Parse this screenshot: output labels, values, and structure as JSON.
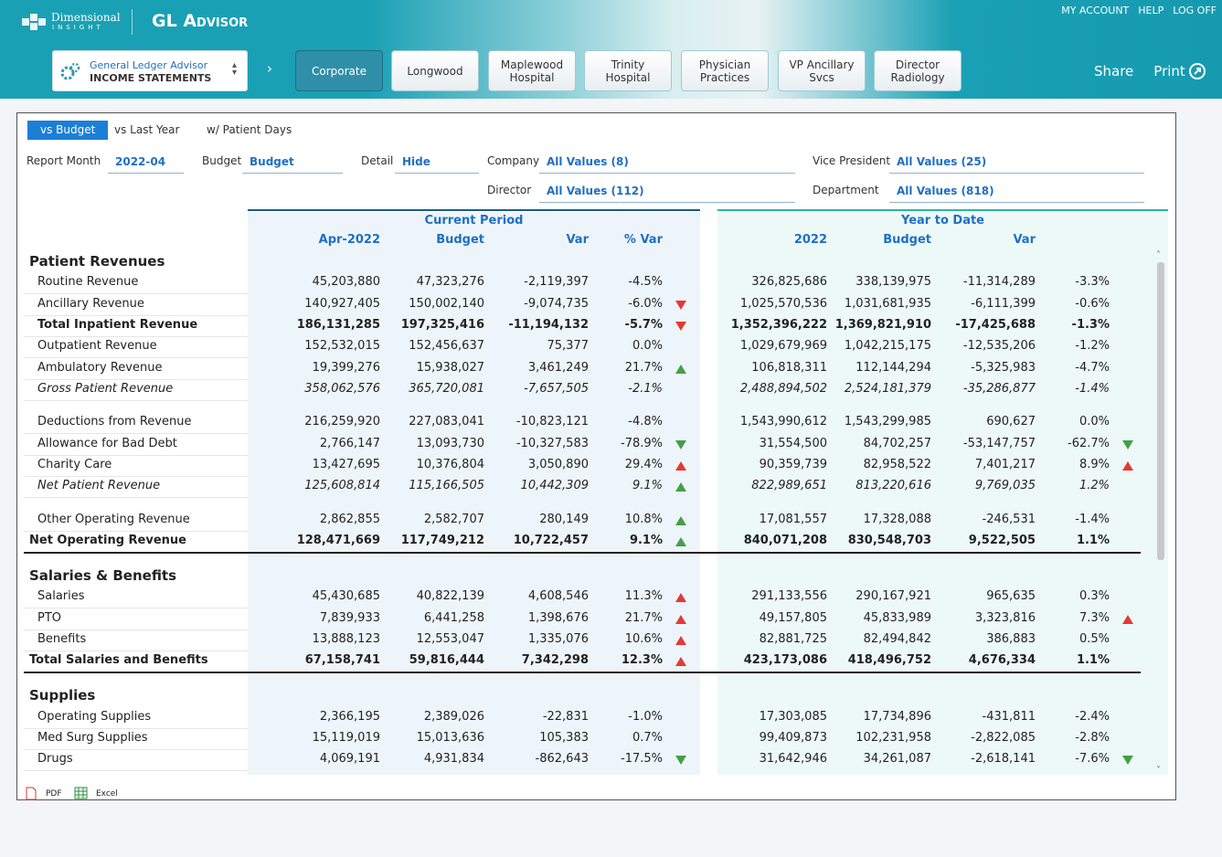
{
  "header": {
    "brand": "Dimensional",
    "brand_sub": "INSIGHT",
    "app_title": "GL Advisor",
    "links": [
      "MY ACCOUNT",
      "HELP",
      "LOG OFF"
    ],
    "selector": {
      "title": "General Ledger Advisor",
      "subtitle": "INCOME STATEMENTS"
    },
    "tabs": [
      "Corporate",
      "Longwood",
      "Maplewood Hospital",
      "Trinity Hospital",
      "Physician Practices",
      "VP Ancillary Svcs",
      "Director Radiology"
    ],
    "active_tab": 0,
    "actions": [
      "Share",
      "Print"
    ]
  },
  "view_tabs": [
    "vs Budget",
    "vs Last Year",
    "w/ Patient Days"
  ],
  "active_view": 0,
  "filters": [
    {
      "label": "Report Month",
      "value": "2022-04"
    },
    {
      "label": "Budget",
      "value": "Budget"
    },
    {
      "label": "Detail",
      "value": "Hide"
    },
    {
      "label": "Company",
      "value": "All Values (8)"
    },
    {
      "label": "Vice President",
      "value": "All Values (25)"
    },
    {
      "label": "Director",
      "value": "All Values (112)"
    },
    {
      "label": "Department",
      "value": "All Values (818)"
    }
  ],
  "table": {
    "groups": [
      "Current Period",
      "Year to Date"
    ],
    "columns": [
      "Apr-2022",
      "Budget",
      "Var",
      "% Var",
      "2022",
      "Budget",
      "Var"
    ],
    "rows": [
      {
        "label": "Patient Revenues",
        "style": "section"
      },
      {
        "label": "Routine Revenue",
        "style": "detail",
        "current": [
          "45,203,880",
          "47,323,276",
          "-2,119,397",
          "-4.5%"
        ],
        "ytd": [
          "326,825,686",
          "338,139,975",
          "-11,314,289",
          "-3.3%"
        ]
      },
      {
        "label": "Ancillary Revenue",
        "style": "detail",
        "current": [
          "140,927,405",
          "150,002,140",
          "-9,074,735",
          "-6.0%"
        ],
        "ytd": [
          "1,025,570,536",
          "1,031,681,935",
          "-6,111,399",
          "-0.6%"
        ],
        "cp_arrow": {
          "dir": "down",
          "color": "#e53935"
        }
      },
      {
        "label": "Total Inpatient Revenue",
        "style": "subtotal",
        "current": [
          "186,131,285",
          "197,325,416",
          "-11,194,132",
          "-5.7%"
        ],
        "ytd": [
          "1,352,396,222",
          "1,369,821,910",
          "-17,425,688",
          "-1.3%"
        ],
        "cp_arrow": {
          "dir": "down",
          "color": "#e53935"
        }
      },
      {
        "label": "Outpatient Revenue",
        "style": "detail",
        "current": [
          "152,532,015",
          "152,456,637",
          "75,377",
          "0.0%"
        ],
        "ytd": [
          "1,029,679,969",
          "1,042,215,175",
          "-12,535,206",
          "-1.2%"
        ]
      },
      {
        "label": "Ambulatory Revenue",
        "style": "detail",
        "current": [
          "19,399,276",
          "15,938,027",
          "3,461,249",
          "21.7%"
        ],
        "ytd": [
          "106,818,311",
          "112,144,294",
          "-5,325,983",
          "-4.7%"
        ],
        "cp_arrow": {
          "dir": "up",
          "color": "#43a047"
        }
      },
      {
        "label": "Gross Patient Revenue",
        "style": "italic",
        "current": [
          "358,062,576",
          "365,720,081",
          "-7,657,505",
          "-2.1%"
        ],
        "ytd": [
          "2,488,894,502",
          "2,524,181,379",
          "-35,286,877",
          "-1.4%"
        ]
      },
      {
        "label": "Deductions from Revenue",
        "style": "detail",
        "current": [
          "216,259,920",
          "227,083,041",
          "-10,823,121",
          "-4.8%"
        ],
        "ytd": [
          "1,543,990,612",
          "1,543,299,985",
          "690,627",
          "0.0%"
        ]
      },
      {
        "label": "Allowance for Bad Debt",
        "style": "detail",
        "current": [
          "2,766,147",
          "13,093,730",
          "-10,327,583",
          "-78.9%"
        ],
        "ytd": [
          "31,554,500",
          "84,702,257",
          "-53,147,757",
          "-62.7%"
        ],
        "cp_arrow": {
          "dir": "down",
          "color": "#43a047"
        },
        "ytd_arrow": {
          "dir": "down",
          "color": "#43a047"
        }
      },
      {
        "label": "Charity Care",
        "style": "detail",
        "current": [
          "13,427,695",
          "10,376,804",
          "3,050,890",
          "29.4%"
        ],
        "ytd": [
          "90,359,739",
          "82,958,522",
          "7,401,217",
          "8.9%"
        ],
        "cp_arrow": {
          "dir": "up",
          "color": "#e53935"
        },
        "ytd_arrow": {
          "dir": "up",
          "color": "#e53935"
        }
      },
      {
        "label": "Net Patient Revenue",
        "style": "italic",
        "current": [
          "125,608,814",
          "115,166,505",
          "10,442,309",
          "9.1%"
        ],
        "ytd": [
          "822,989,651",
          "813,220,616",
          "9,769,035",
          "1.2%"
        ],
        "cp_arrow": {
          "dir": "up",
          "color": "#43a047"
        }
      },
      {
        "label": "Other Operating Revenue",
        "style": "detail",
        "current": [
          "2,862,855",
          "2,582,707",
          "280,149",
          "10.8%"
        ],
        "ytd": [
          "17,081,557",
          "17,328,088",
          "-246,531",
          "-1.4%"
        ],
        "cp_arrow": {
          "dir": "up",
          "color": "#43a047"
        }
      },
      {
        "label": "Net Operating Revenue",
        "style": "total",
        "current": [
          "128,471,669",
          "117,749,212",
          "10,722,457",
          "9.1%"
        ],
        "ytd": [
          "840,071,208",
          "830,548,703",
          "9,522,505",
          "1.1%"
        ],
        "cp_arrow": {
          "dir": "up",
          "color": "#43a047"
        }
      },
      {
        "label": "Salaries & Benefits",
        "style": "section"
      },
      {
        "label": "Salaries",
        "style": "detail",
        "current": [
          "45,430,685",
          "40,822,139",
          "4,608,546",
          "11.3%"
        ],
        "ytd": [
          "291,133,556",
          "290,167,921",
          "965,635",
          "0.3%"
        ],
        "cp_arrow": {
          "dir": "up",
          "color": "#e53935"
        }
      },
      {
        "label": "PTO",
        "style": "detail",
        "current": [
          "7,839,933",
          "6,441,258",
          "1,398,676",
          "21.7%"
        ],
        "ytd": [
          "49,157,805",
          "45,833,989",
          "3,323,816",
          "7.3%"
        ],
        "cp_arrow": {
          "dir": "up",
          "color": "#e53935"
        },
        "ytd_arrow": {
          "dir": "up",
          "color": "#e53935"
        }
      },
      {
        "label": "Benefits",
        "style": "detail",
        "current": [
          "13,888,123",
          "12,553,047",
          "1,335,076",
          "10.6%"
        ],
        "ytd": [
          "82,881,725",
          "82,494,842",
          "386,883",
          "0.5%"
        ],
        "cp_arrow": {
          "dir": "up",
          "color": "#e53935"
        }
      },
      {
        "label": "Total Salaries and Benefits",
        "style": "total",
        "current": [
          "67,158,741",
          "59,816,444",
          "7,342,298",
          "12.3%"
        ],
        "ytd": [
          "423,173,086",
          "418,496,752",
          "4,676,334",
          "1.1%"
        ],
        "cp_arrow": {
          "dir": "up",
          "color": "#e53935"
        }
      },
      {
        "label": "Supplies",
        "style": "section"
      },
      {
        "label": "Operating Supplies",
        "style": "detail",
        "current": [
          "2,366,195",
          "2,389,026",
          "-22,831",
          "-1.0%"
        ],
        "ytd": [
          "17,303,085",
          "17,734,896",
          "-431,811",
          "-2.4%"
        ]
      },
      {
        "label": "Med Surg Supplies",
        "style": "detail",
        "current": [
          "15,119,019",
          "15,013,636",
          "105,383",
          "0.7%"
        ],
        "ytd": [
          "99,409,873",
          "102,231,958",
          "-2,822,085",
          "-2.8%"
        ]
      },
      {
        "label": "Drugs",
        "style": "detail",
        "current": [
          "4,069,191",
          "4,931,834",
          "-862,643",
          "-17.5%"
        ],
        "ytd": [
          "31,642,946",
          "34,261,087",
          "-2,618,141",
          "-7.6%"
        ],
        "cp_arrow": {
          "dir": "down",
          "color": "#43a047"
        },
        "ytd_arrow": {
          "dir": "down",
          "color": "#43a047"
        }
      }
    ]
  },
  "footer": [
    "PDF",
    "Excel"
  ]
}
